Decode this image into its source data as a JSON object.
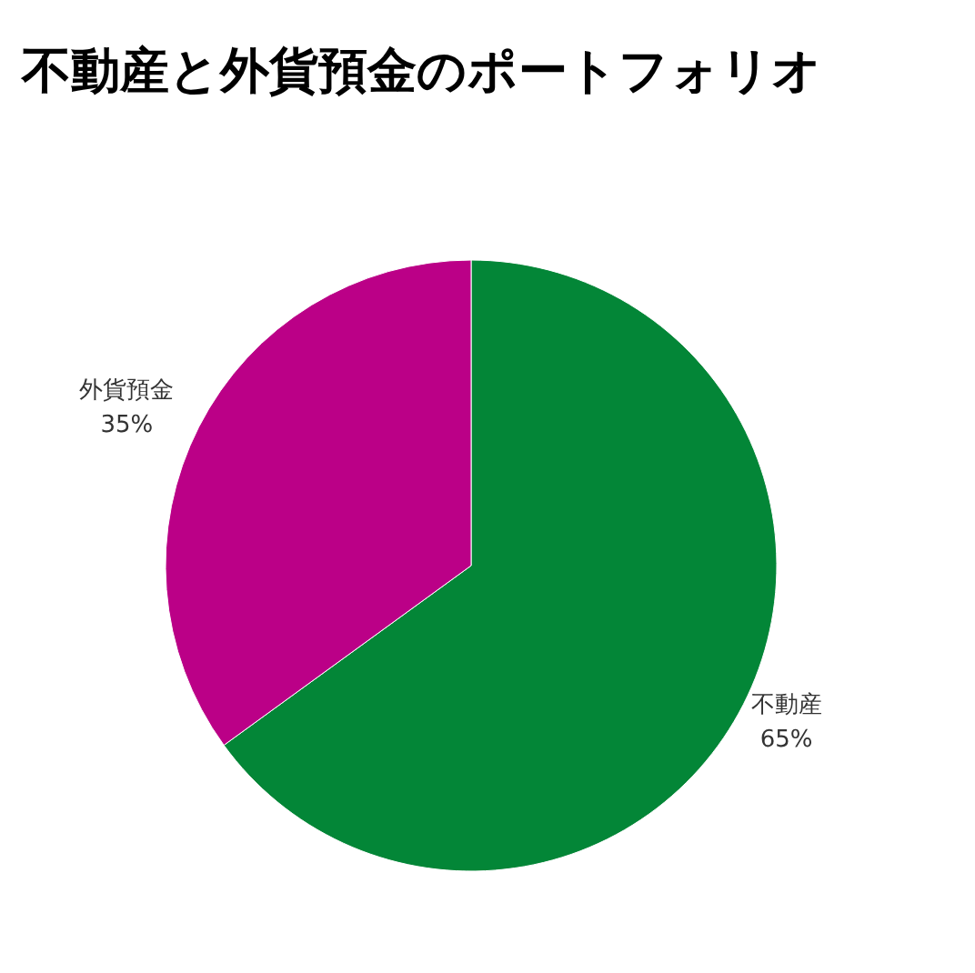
{
  "chart_data": {
    "type": "pie",
    "title": "不動産と外貨預金のポートフォリオ",
    "categories": [
      "不動産",
      "外貨預金"
    ],
    "values": [
      65,
      35
    ],
    "colors": [
      "#038637",
      "#bb0087"
    ],
    "value_labels": [
      "65%",
      "35%"
    ]
  }
}
